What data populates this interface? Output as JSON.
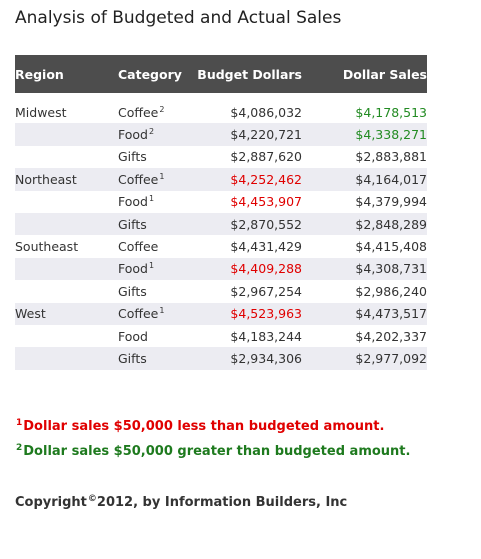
{
  "title": "Analysis of Budgeted and Actual Sales",
  "headers": [
    "Region",
    "Category",
    "Budget Dollars",
    "Dollar Sales"
  ],
  "rows": [
    {
      "region": "Midwest",
      "category": "Coffee",
      "mark": "2",
      "budget": "$4,086,032",
      "sales": "$4,178,513",
      "budget_color": "normal",
      "sales_color": "green"
    },
    {
      "region": "",
      "category": "Food",
      "mark": "2",
      "budget": "$4,220,721",
      "sales": "$4,338,271",
      "budget_color": "normal",
      "sales_color": "green"
    },
    {
      "region": "",
      "category": "Gifts",
      "mark": "",
      "budget": "$2,887,620",
      "sales": "$2,883,881",
      "budget_color": "normal",
      "sales_color": "normal"
    },
    {
      "region": "Northeast",
      "category": "Coffee",
      "mark": "1",
      "budget": "$4,252,462",
      "sales": "$4,164,017",
      "budget_color": "red",
      "sales_color": "normal"
    },
    {
      "region": "",
      "category": "Food",
      "mark": "1",
      "budget": "$4,453,907",
      "sales": "$4,379,994",
      "budget_color": "red",
      "sales_color": "normal"
    },
    {
      "region": "",
      "category": "Gifts",
      "mark": "",
      "budget": "$2,870,552",
      "sales": "$2,848,289",
      "budget_color": "normal",
      "sales_color": "normal"
    },
    {
      "region": "Southeast",
      "category": "Coffee",
      "mark": "",
      "budget": "$4,431,429",
      "sales": "$4,415,408",
      "budget_color": "normal",
      "sales_color": "normal"
    },
    {
      "region": "",
      "category": "Food",
      "mark": "1",
      "budget": "$4,409,288",
      "sales": "$4,308,731",
      "budget_color": "red",
      "sales_color": "normal"
    },
    {
      "region": "",
      "category": "Gifts",
      "mark": "",
      "budget": "$2,967,254",
      "sales": "$2,986,240",
      "budget_color": "normal",
      "sales_color": "normal"
    },
    {
      "region": "West",
      "category": "Coffee",
      "mark": "1",
      "budget": "$4,523,963",
      "sales": "$4,473,517",
      "budget_color": "red",
      "sales_color": "normal"
    },
    {
      "region": "",
      "category": "Food",
      "mark": "",
      "budget": "$4,183,244",
      "sales": "$4,202,337",
      "budget_color": "normal",
      "sales_color": "normal"
    },
    {
      "region": "",
      "category": "Gifts",
      "mark": "",
      "budget": "$2,934,306",
      "sales": "$2,977,092",
      "budget_color": "normal",
      "sales_color": "normal"
    }
  ],
  "footnotes": {
    "note1_mark": "1",
    "note1_text": "Dollar sales $50,000 less than budgeted amount.",
    "note2_mark": "2",
    "note2_text": "Dollar sales $50,000 greater than budgeted amount."
  },
  "copyright": {
    "prefix": "Copyright",
    "symbol": "©",
    "suffix": "2012, by Information Builders, Inc"
  },
  "colors": {
    "header_bg": "#4d4d4d",
    "stripe_bg": "#ececf2",
    "under_budget": "#e00000",
    "over_budget": "#228b22"
  }
}
